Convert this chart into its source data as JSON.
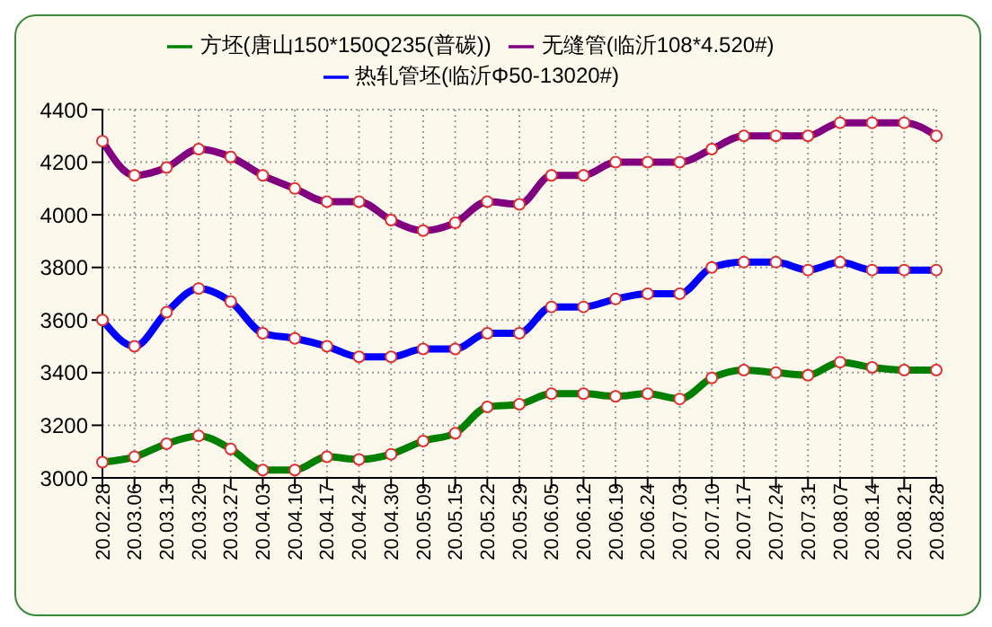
{
  "chart_data": {
    "type": "line",
    "categories": [
      "20.02.28",
      "20.03.06",
      "20.03.13",
      "20.03.20",
      "20.03.27",
      "20.04.03",
      "20.04.10",
      "20.04.17",
      "20.04.24",
      "20.04.30",
      "20.05.09",
      "20.05.15",
      "20.05.22",
      "20.05.29",
      "20.06.05",
      "20.06.12",
      "20.06.19",
      "20.06.24",
      "20.07.03",
      "20.07.10",
      "20.07.17",
      "20.07.24",
      "20.07.31",
      "20.08.07",
      "20.08.14",
      "20.08.21",
      "20.08.28"
    ],
    "series": [
      {
        "name": "方坯(唐山150*150Q235(普碳))",
        "color": "#008000",
        "values": [
          3060,
          3080,
          3130,
          3160,
          3110,
          3030,
          3030,
          3080,
          3070,
          3090,
          3140,
          3170,
          3270,
          3280,
          3320,
          3320,
          3310,
          3320,
          3300,
          3380,
          3410,
          3400,
          3390,
          3440,
          3420,
          3410,
          3410
        ]
      },
      {
        "name": "热轧管坯(临沂Φ50-13020#)",
        "color": "#0000ff",
        "values": [
          3600,
          3500,
          3630,
          3720,
          3670,
          3550,
          3530,
          3500,
          3460,
          3460,
          3490,
          3490,
          3550,
          3550,
          3650,
          3650,
          3680,
          3700,
          3700,
          3800,
          3820,
          3820,
          3790,
          3820,
          3790,
          3790,
          3790
        ]
      },
      {
        "name": "无缝管(临沂108*4.520#)",
        "color": "#800080",
        "values": [
          4280,
          4150,
          4180,
          4250,
          4220,
          4150,
          4100,
          4050,
          4050,
          3980,
          3940,
          3970,
          4050,
          4040,
          4150,
          4150,
          4200,
          4200,
          4200,
          4250,
          4300,
          4300,
          4300,
          4350,
          4350,
          4350,
          4300
        ]
      }
    ],
    "ylim": [
      3000,
      4400
    ],
    "yticks": [
      3000,
      3200,
      3400,
      3600,
      3800,
      4000,
      4200,
      4400
    ],
    "grid": true,
    "legend": "top",
    "marker": "circle",
    "line_style": "solid"
  }
}
